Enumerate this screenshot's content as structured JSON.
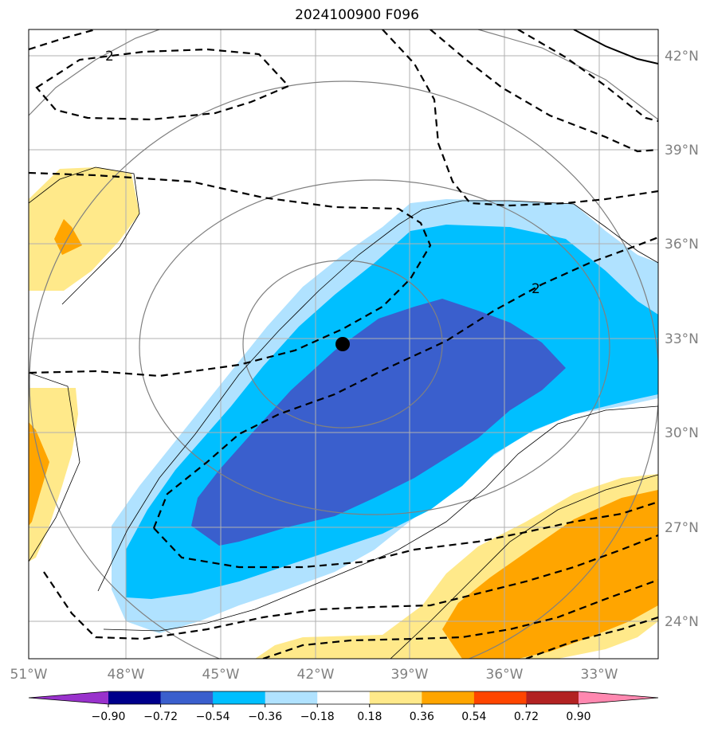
{
  "title": "2024100900 F096",
  "map": {
    "lon_range": [
      -51,
      -31
    ],
    "lat_range": [
      23,
      43
    ],
    "lon_labels": [
      "51°W",
      "48°W",
      "45°W",
      "42°W",
      "39°W",
      "36°W",
      "33°W"
    ],
    "lat_labels": [
      "42°N",
      "39°N",
      "36°N",
      "33°N",
      "30°N",
      "27°N",
      "24°N"
    ],
    "storm_center": {
      "lon": -41.0,
      "lat": 32.8
    },
    "contour_labels": [
      "2",
      "2"
    ]
  },
  "colorbar": {
    "ticks": [
      "−0.90",
      "−0.72",
      "−0.54",
      "−0.36",
      "−0.18",
      "0.18",
      "0.36",
      "0.54",
      "0.72",
      "0.90"
    ],
    "colors": [
      "#9932cc",
      "#00008b",
      "#3a5fcd",
      "#00bfff",
      "#b0e2ff",
      "#ffffff",
      "#ffe98a",
      "#ffa500",
      "#ff4500",
      "#b22222",
      "#ff88b0"
    ]
  }
}
